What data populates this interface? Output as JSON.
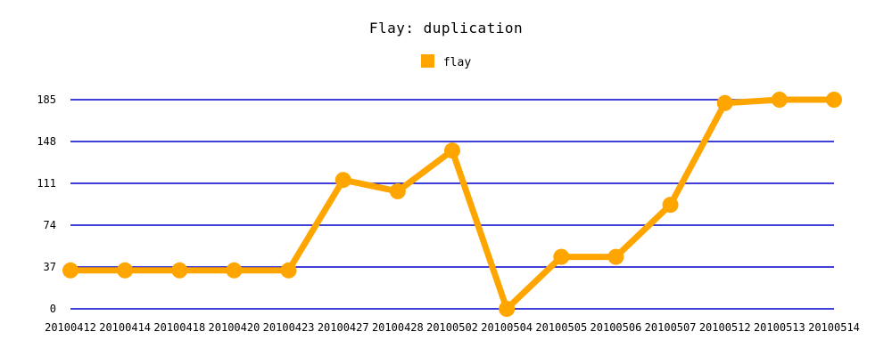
{
  "chart_data": {
    "type": "line",
    "title": "Flay: duplication",
    "xlabel": "",
    "ylabel": "",
    "categories": [
      "20100412",
      "20100414",
      "20100418",
      "20100420",
      "20100423",
      "20100427",
      "20100428",
      "20100502",
      "20100504",
      "20100505",
      "20100506",
      "20100507",
      "20100512",
      "20100513",
      "20100514"
    ],
    "series": [
      {
        "name": "flay",
        "values": [
          34,
          34,
          34,
          34,
          34,
          114,
          104,
          140,
          0,
          46,
          46,
          92,
          182,
          185,
          185
        ]
      }
    ],
    "yticks": [
      0,
      37,
      74,
      111,
      148,
      185
    ],
    "ylim": [
      0,
      185
    ],
    "grid": true,
    "legend_position": "top-center"
  },
  "colors": {
    "series": "#ffa500",
    "grid": "#0000cc",
    "text": "#000000"
  }
}
